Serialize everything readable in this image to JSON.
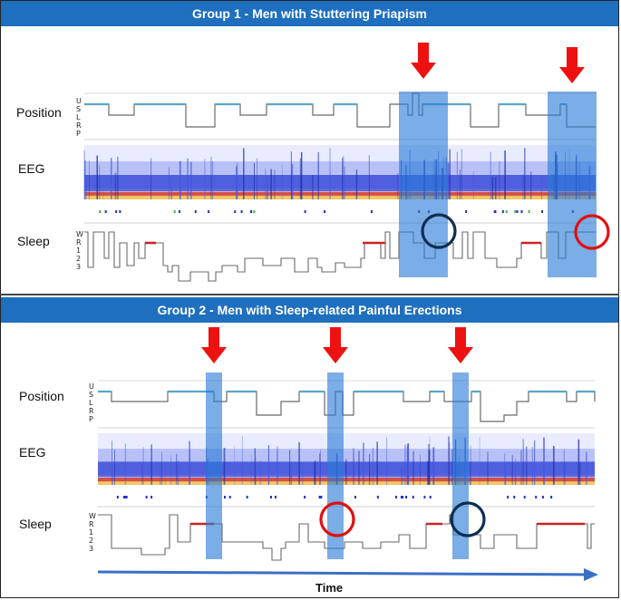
{
  "panels": [
    {
      "title": "Group 1 - Men with Stuttering Priapism"
    },
    {
      "title": "Group 2 - Men with Sleep-related Painful Erections"
    }
  ],
  "labels": {
    "position": "Position",
    "eeg": "EEG",
    "sleep": "Sleep",
    "time": "Time"
  },
  "position_levels": [
    "U",
    "S",
    "L",
    "R",
    "P"
  ],
  "sleep_levels": [
    "W",
    "R",
    "1",
    "2",
    "3"
  ],
  "colors": {
    "banner": "#1f6fbf",
    "highlight": "#2a7ad6",
    "arrow": "#ee1111",
    "circle_red": "#e01010",
    "circle_navy": "#0d2f52",
    "trace": "#6a6a6a",
    "rem": "#cc2222",
    "axis_arrow": "#3a6fc4"
  }
}
